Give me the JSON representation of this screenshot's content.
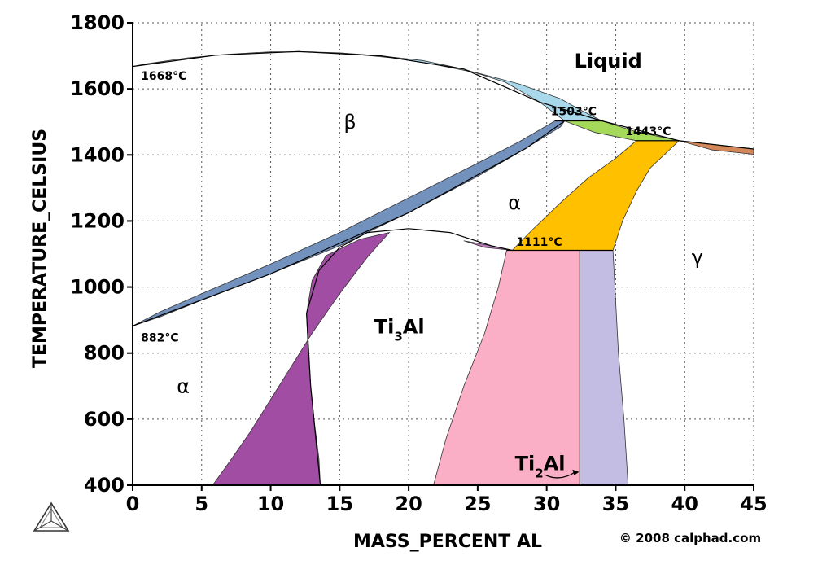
{
  "chart_data": {
    "type": "area",
    "title": "",
    "xlabel": "MASS_PERCENT AL",
    "ylabel": "TEMPERATURE_CELSIUS",
    "xlim": [
      0,
      45
    ],
    "ylim": [
      400,
      1800
    ],
    "x_ticks": [
      0,
      5,
      10,
      15,
      20,
      25,
      30,
      35,
      40,
      45
    ],
    "y_ticks": [
      400,
      600,
      800,
      1000,
      1200,
      1400,
      1600,
      1800
    ],
    "grid": true,
    "annotations": [
      {
        "text": "1668°C",
        "x": 0.6,
        "y": 1628
      },
      {
        "text": "1503°C",
        "x": 30.3,
        "y": 1520
      },
      {
        "text": "1443°C",
        "x": 35.7,
        "y": 1460
      },
      {
        "text": "1111°C",
        "x": 27.8,
        "y": 1125
      },
      {
        "text": "882°C",
        "x": 0.6,
        "y": 835
      }
    ],
    "phase_labels": [
      {
        "text": "Liquid",
        "x": 32.0,
        "y": 1665,
        "bold": true
      },
      {
        "text": "β",
        "x": 15.3,
        "y": 1480,
        "bold": false
      },
      {
        "text": "α",
        "x": 27.2,
        "y": 1235,
        "bold": false
      },
      {
        "text": "γ",
        "x": 40.5,
        "y": 1070,
        "bold": false
      },
      {
        "text": "α",
        "x": 3.2,
        "y": 680,
        "bold": false
      }
    ],
    "compound_labels": [
      {
        "base": "Ti",
        "sub": "3",
        "rest": "Al",
        "x": 17.5,
        "y": 860
      },
      {
        "base": "Ti",
        "sub": "2",
        "rest": "Al",
        "x": 27.7,
        "y": 445
      }
    ],
    "regions": [
      {
        "name": "β+Liquid",
        "color": "#a9d8ea",
        "points": [
          [
            0,
            1668
          ],
          [
            3,
            1688
          ],
          [
            6,
            1702
          ],
          [
            9,
            1710
          ],
          [
            12,
            1713
          ],
          [
            15,
            1709
          ],
          [
            18,
            1700
          ],
          [
            21,
            1686
          ],
          [
            24,
            1660
          ],
          [
            27,
            1620
          ],
          [
            29.5,
            1560
          ],
          [
            31.3,
            1503
          ],
          [
            34,
            1503
          ],
          [
            32.5,
            1535
          ],
          [
            31,
            1570
          ],
          [
            28,
            1615
          ],
          [
            25,
            1648
          ],
          [
            22,
            1673
          ],
          [
            19,
            1693
          ],
          [
            16,
            1705
          ],
          [
            13,
            1712
          ],
          [
            10,
            1712
          ],
          [
            7,
            1705
          ],
          [
            4,
            1694
          ],
          [
            1,
            1676
          ],
          [
            0,
            1668
          ]
        ]
      },
      {
        "name": "β+α",
        "color": "#7291bd",
        "points": [
          [
            0,
            882
          ],
          [
            2,
            910
          ],
          [
            5,
            960
          ],
          [
            10,
            1040
          ],
          [
            15,
            1125
          ],
          [
            20,
            1225
          ],
          [
            25,
            1335
          ],
          [
            28.5,
            1420
          ],
          [
            31,
            1485
          ],
          [
            31.3,
            1503
          ],
          [
            30.6,
            1503
          ],
          [
            28,
            1440
          ],
          [
            25,
            1375
          ],
          [
            20,
            1270
          ],
          [
            15,
            1165
          ],
          [
            10,
            1070
          ],
          [
            5,
            980
          ],
          [
            2,
            925
          ],
          [
            0,
            882
          ]
        ]
      },
      {
        "name": "α+Liquid",
        "color": "#a4d95a",
        "points": [
          [
            31.3,
            1503
          ],
          [
            34,
            1503
          ],
          [
            36.5,
            1470
          ],
          [
            39.6,
            1443
          ],
          [
            36.5,
            1443
          ],
          [
            33.5,
            1468
          ],
          [
            31.3,
            1503
          ]
        ]
      },
      {
        "name": "γ+Liquid",
        "color": "#d4885a",
        "points": [
          [
            39.6,
            1443
          ],
          [
            42,
            1432
          ],
          [
            45,
            1418
          ],
          [
            45,
            1402
          ],
          [
            42,
            1415
          ],
          [
            39.6,
            1443
          ]
        ]
      },
      {
        "name": "α+γ",
        "color": "#ffc000",
        "points": [
          [
            27.5,
            1111
          ],
          [
            29,
            1175
          ],
          [
            31,
            1255
          ],
          [
            33,
            1330
          ],
          [
            35,
            1390
          ],
          [
            36.5,
            1443
          ],
          [
            39.6,
            1443
          ],
          [
            37.5,
            1360
          ],
          [
            36.5,
            1290
          ],
          [
            35.5,
            1200
          ],
          [
            34.8,
            1111
          ]
        ]
      },
      {
        "name": "α+Ti3Al",
        "color": "#a04da3",
        "points": [
          [
            5.8,
            400
          ],
          [
            7,
            470
          ],
          [
            8.5,
            560
          ],
          [
            10,
            660
          ],
          [
            11.5,
            760
          ],
          [
            13,
            860
          ],
          [
            15,
            980
          ],
          [
            17,
            1090
          ],
          [
            18.6,
            1165
          ],
          [
            16.5,
            1145
          ],
          [
            14,
            1095
          ],
          [
            13,
            1020
          ],
          [
            12.6,
            920
          ],
          [
            12.7,
            820
          ],
          [
            12.9,
            700
          ],
          [
            13.2,
            580
          ],
          [
            13.5,
            480
          ],
          [
            13.6,
            400
          ]
        ]
      },
      {
        "name": "Ti3Al+α",
        "color": "#b878bb",
        "points": [
          [
            24,
            1140
          ],
          [
            26,
            1125
          ],
          [
            27.5,
            1111
          ],
          [
            25.5,
            1120
          ],
          [
            24,
            1140
          ]
        ]
      },
      {
        "name": "Ti3Al+Ti2Al",
        "color": "#fbafc7",
        "points": [
          [
            21.8,
            400
          ],
          [
            22.7,
            540
          ],
          [
            24,
            700
          ],
          [
            25.5,
            860
          ],
          [
            26.5,
            1000
          ],
          [
            27.1,
            1111
          ],
          [
            32.4,
            1111
          ],
          [
            32.4,
            400
          ]
        ]
      },
      {
        "name": "Ti2Al+γ",
        "color": "#c3bde3",
        "points": [
          [
            32.4,
            400
          ],
          [
            32.4,
            1111
          ],
          [
            34.8,
            1111
          ],
          [
            35.2,
            800
          ],
          [
            35.6,
            600
          ],
          [
            35.9,
            400
          ]
        ]
      }
    ],
    "lines": [
      {
        "name": "liquidus",
        "points": [
          [
            0,
            1668
          ],
          [
            6,
            1702
          ],
          [
            12,
            1713
          ],
          [
            18,
            1700
          ],
          [
            24,
            1660
          ],
          [
            29.5,
            1560
          ],
          [
            34,
            1503
          ],
          [
            39.6,
            1443
          ],
          [
            45,
            1418
          ]
        ]
      },
      {
        "name": "beta-transus",
        "points": [
          [
            0,
            882
          ],
          [
            10,
            1040
          ],
          [
            20,
            1225
          ],
          [
            28.5,
            1420
          ],
          [
            31.3,
            1503
          ]
        ]
      },
      {
        "name": "ti3al-dome",
        "points": [
          [
            13.6,
            400
          ],
          [
            12.9,
            700
          ],
          [
            12.6,
            920
          ],
          [
            13.5,
            1050
          ],
          [
            15,
            1120
          ],
          [
            17,
            1165
          ],
          [
            20,
            1177
          ],
          [
            23,
            1165
          ],
          [
            26,
            1125
          ],
          [
            27.5,
            1111
          ]
        ]
      },
      {
        "name": "ti2al-boundary",
        "points": [
          [
            32.4,
            400
          ],
          [
            32.4,
            1111
          ]
        ]
      },
      {
        "name": "peritectic-1503",
        "points": [
          [
            30.6,
            1503
          ],
          [
            34,
            1503
          ]
        ]
      },
      {
        "name": "peritectic-1443",
        "points": [
          [
            36.5,
            1443
          ],
          [
            39.6,
            1443
          ]
        ]
      },
      {
        "name": "eutectoid-1111",
        "points": [
          [
            27.1,
            1111
          ],
          [
            34.8,
            1111
          ]
        ]
      }
    ]
  },
  "copyright": "© 2008 calphad.com",
  "colors": {
    "grid": "#555555",
    "outline": "#000000"
  },
  "logo": {
    "icon": "calphad-triangle-logo"
  }
}
